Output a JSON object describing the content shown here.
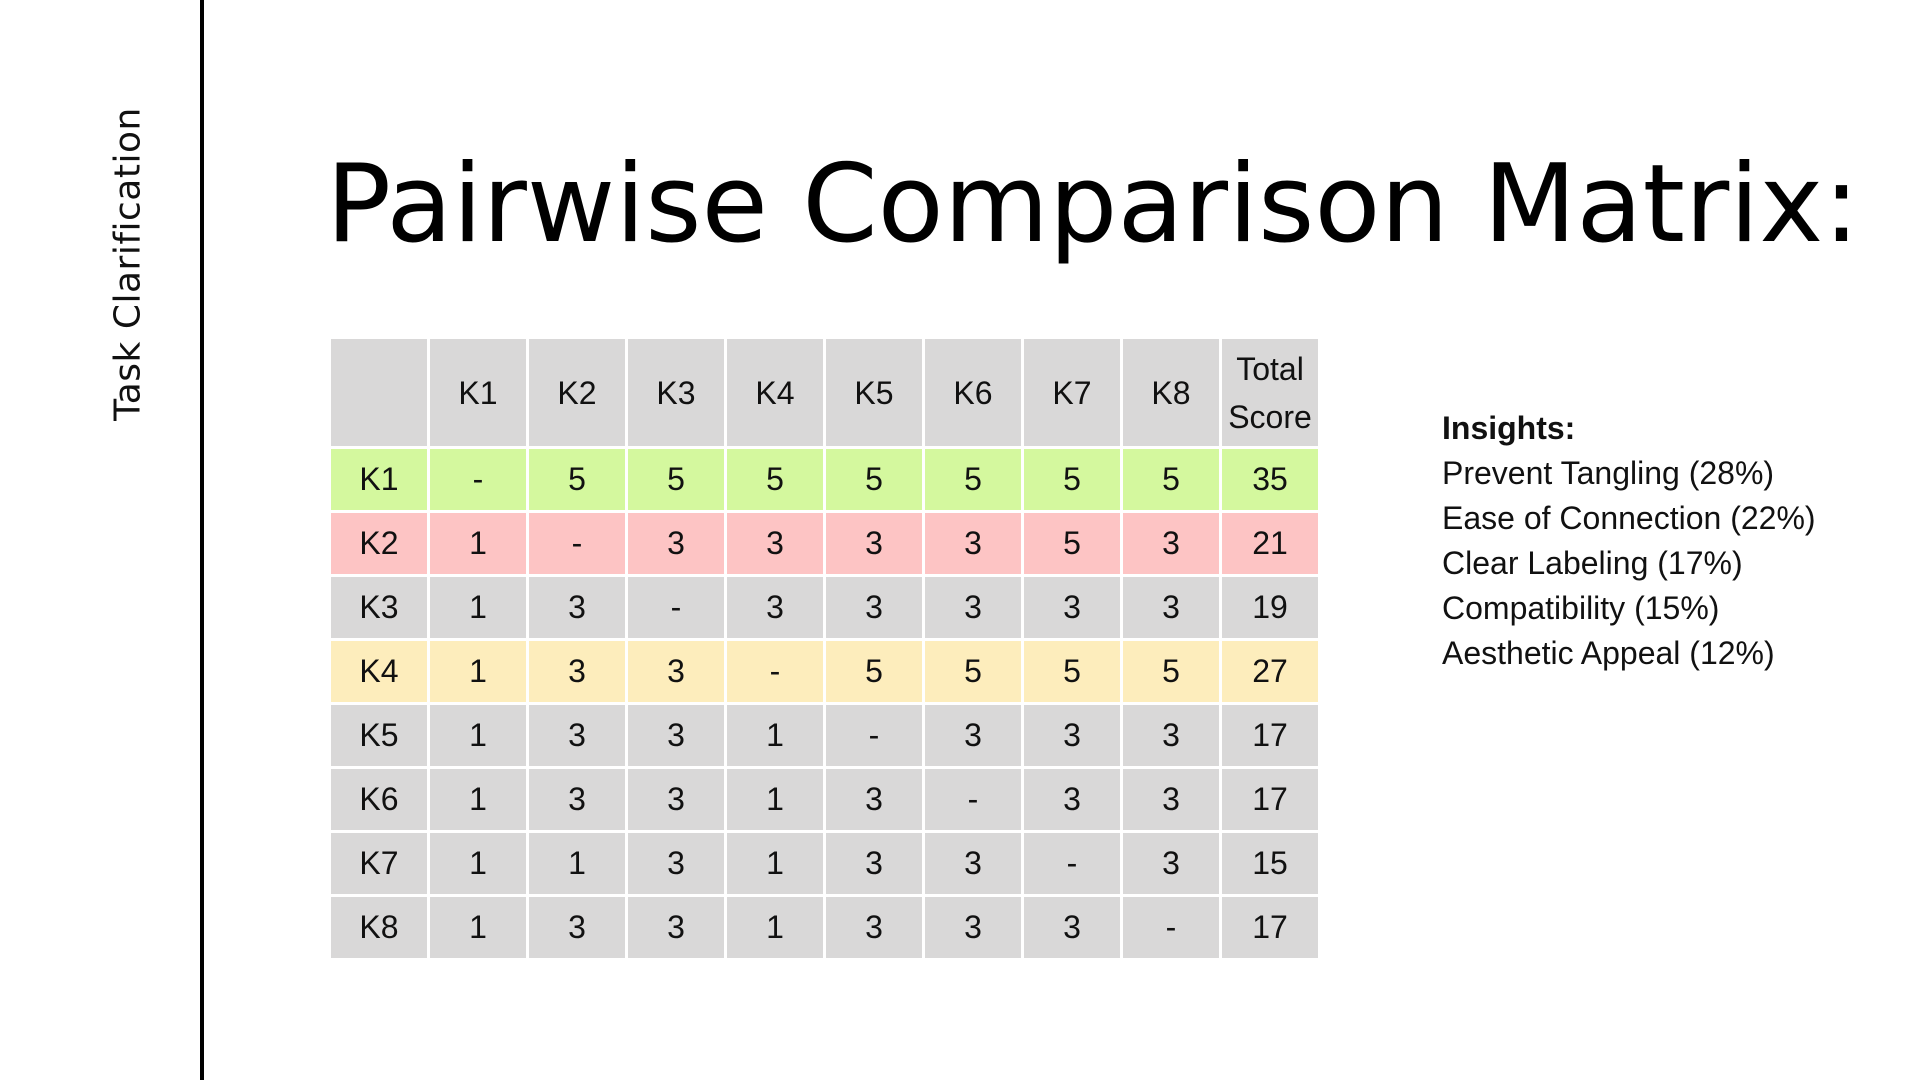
{
  "sidebar": {
    "label": "Task Clarification"
  },
  "title": "Pairwise Comparison Matrix:",
  "matrix": {
    "corner": "",
    "columns": [
      "K1",
      "K2",
      "K3",
      "K4",
      "K5",
      "K6",
      "K7",
      "K8"
    ],
    "total_header_line1": "Total",
    "total_header_line2": "Score",
    "rows": [
      {
        "label": "K1",
        "values": [
          "-",
          "5",
          "5",
          "5",
          "5",
          "5",
          "5",
          "5"
        ],
        "total": "35",
        "highlight": "green"
      },
      {
        "label": "K2",
        "values": [
          "1",
          "-",
          "3",
          "3",
          "3",
          "3",
          "5",
          "3"
        ],
        "total": "21",
        "highlight": "red"
      },
      {
        "label": "K3",
        "values": [
          "1",
          "3",
          "-",
          "3",
          "3",
          "3",
          "3",
          "3"
        ],
        "total": "19",
        "highlight": "none"
      },
      {
        "label": "K4",
        "values": [
          "1",
          "3",
          "3",
          "-",
          "5",
          "5",
          "5",
          "5"
        ],
        "total": "27",
        "highlight": "yellow"
      },
      {
        "label": "K5",
        "values": [
          "1",
          "3",
          "3",
          "1",
          "-",
          "3",
          "3",
          "3"
        ],
        "total": "17",
        "highlight": "none"
      },
      {
        "label": "K6",
        "values": [
          "1",
          "3",
          "3",
          "1",
          "3",
          "-",
          "3",
          "3"
        ],
        "total": "17",
        "highlight": "none"
      },
      {
        "label": "K7",
        "values": [
          "1",
          "1",
          "3",
          "1",
          "3",
          "3",
          "-",
          "3"
        ],
        "total": "15",
        "highlight": "none"
      },
      {
        "label": "K8",
        "values": [
          "1",
          "3",
          "3",
          "1",
          "3",
          "3",
          "3",
          "-"
        ],
        "total": "17",
        "highlight": "none"
      }
    ]
  },
  "colors": {
    "cell_default": "#d9d8d8",
    "highlight_green": "#d4f89e",
    "highlight_red": "#fdc4c4",
    "highlight_yellow": "#fdedbc",
    "divider": "#000000"
  },
  "insights": {
    "heading": "Insights:",
    "items": [
      "Prevent Tangling (28%)",
      "Ease of Connection (22%)",
      "Clear Labeling (17%)",
      "Compatibility (15%)",
      "Aesthetic Appeal (12%)"
    ]
  }
}
